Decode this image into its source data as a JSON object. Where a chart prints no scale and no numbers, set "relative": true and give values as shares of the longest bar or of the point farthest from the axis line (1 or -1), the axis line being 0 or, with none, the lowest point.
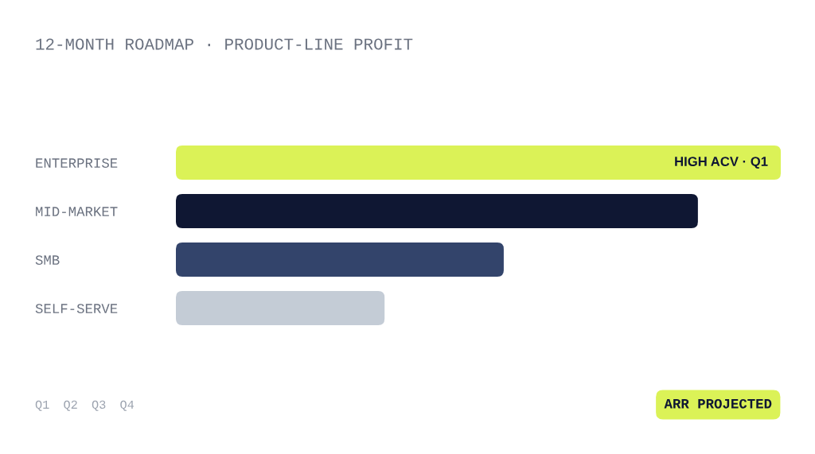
{
  "chart_data": {
    "type": "bar",
    "orientation": "horizontal",
    "relative": true,
    "tick_labels": "y",
    "title": "12-MONTH ROADMAP · PRODUCT-LINE PROFIT",
    "categories": [
      "ENTERPRISE",
      "MID-MARKET",
      "SMB",
      "SELF-SERVE"
    ],
    "values": [
      1,
      0.863,
      0.542,
      0.345
    ],
    "colors": [
      "#dbf257",
      "#0f1733",
      "#33446b",
      "#c4ccd6"
    ],
    "annotations": [
      {
        "text": "HIGH ACV · Q1",
        "x": 1,
        "y": "ENTERPRISE"
      },
      "Q1",
      "Q2",
      "Q3",
      "Q4",
      "ARR PROJECTED"
    ]
  }
}
